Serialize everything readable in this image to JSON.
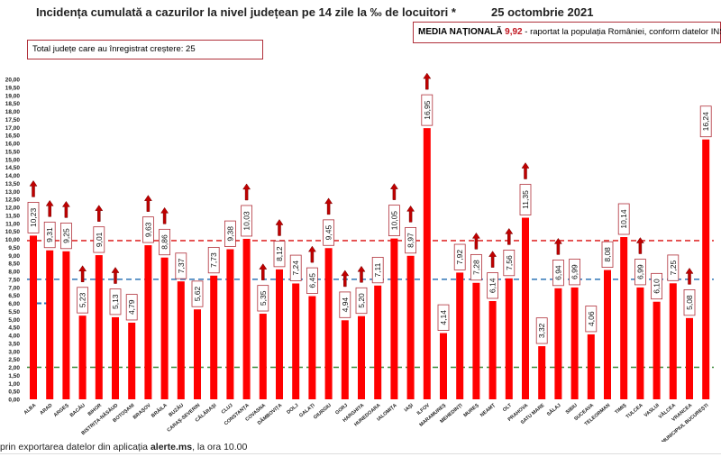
{
  "title": "Incidența cumulată a cazurilor la nivel județean pe 14 zile la ‰ de locuitori *",
  "date": "25 octombrie 2021",
  "total_box": "Total județe care au înregistrat creștere:  25",
  "media_box": {
    "label": "MEDIA NAȚIONALĂ",
    "value": "9,92",
    "text": " -  raportat la populația României, conform datelor INS"
  },
  "footer": {
    "pre": "prin exportarea datelor din aplicația ",
    "bold": "alerte.ms",
    "post": ", la ora 10.00"
  },
  "chart_data": {
    "type": "bar",
    "title": "Incidența cumulată a cazurilor la nivel județean pe 14 zile la ‰ de locuitori *",
    "ylim": [
      0,
      20
    ],
    "ytick_step": 0.5,
    "grid": false,
    "bar_color": "#ff0000",
    "arrow_color": "#c00000",
    "categories": [
      "ALBA",
      "ARAD",
      "ARGEȘ",
      "BACĂU",
      "BIHOR",
      "BISTRIȚA-NĂSĂUD",
      "BOTOȘANI",
      "BRAȘOV",
      "BRĂILA",
      "BUZĂU",
      "CARAȘ-SEVERIN",
      "CĂLĂRAȘI",
      "CLUJ",
      "CONSTANȚA",
      "COVASNA",
      "DÂMBOVIȚA",
      "DOLJ",
      "GALAȚI",
      "GIURGIU",
      "GORJ",
      "HARGHITA",
      "HUNEDOARA",
      "IALOMIȚA",
      "IAȘI",
      "ILFOV",
      "MARAMUREȘ",
      "MEHEDINȚI",
      "MUREȘ",
      "NEAMȚ",
      "OLT",
      "PRAHOVA",
      "SATU MARE",
      "SĂLAJ",
      "SIBIU",
      "SUCEAVA",
      "TELEORMAN",
      "TIMIȘ",
      "TULCEA",
      "VASLUI",
      "VÂLCEA",
      "VRANCEA",
      "MUNICIPIUL BUCUREȘTI"
    ],
    "values": [
      10.23,
      9.31,
      9.25,
      5.23,
      9.01,
      5.13,
      4.79,
      9.63,
      8.86,
      7.37,
      5.62,
      7.73,
      9.38,
      10.03,
      5.35,
      8.12,
      7.24,
      6.45,
      9.45,
      4.94,
      5.2,
      7.11,
      10.05,
      8.97,
      16.95,
      4.14,
      7.92,
      7.28,
      6.14,
      7.56,
      11.35,
      3.32,
      6.94,
      6.99,
      4.06,
      8.08,
      10.14,
      6.99,
      6.1,
      7.25,
      5.08,
      16.24
    ],
    "labels": [
      "10,23",
      "9,31",
      "9,25",
      "5,23",
      "9,01",
      "5,13",
      "4,79",
      "9,63",
      "8,86",
      "7,37",
      "5,62",
      "7,73",
      "9,38",
      "10,03",
      "5,35",
      "8,12",
      "7,24",
      "6,45",
      "9,45",
      "4,94",
      "5,20",
      "7,11",
      "10,05",
      "8,97",
      "16,95",
      "4,14",
      "7,92",
      "7,28",
      "6,14",
      "7,56",
      "11,35",
      "3,32",
      "6,94",
      "6,99",
      "4,06",
      "8,08",
      "10,14",
      "6,99",
      "6,10",
      "7,25",
      "5,08",
      "16,24"
    ],
    "increase": [
      true,
      true,
      true,
      true,
      true,
      true,
      false,
      true,
      true,
      false,
      false,
      false,
      false,
      true,
      true,
      true,
      false,
      true,
      true,
      true,
      true,
      false,
      true,
      true,
      true,
      false,
      false,
      true,
      true,
      true,
      true,
      false,
      true,
      false,
      false,
      false,
      false,
      true,
      false,
      false,
      true,
      false
    ],
    "reference_lines": [
      {
        "value": 9.92,
        "color": "#e03030",
        "style": "dashed"
      },
      {
        "value": 7.5,
        "color": "#2e75b6",
        "style": "dashed"
      },
      {
        "value": 2.0,
        "color": "#3a8a3a",
        "style": "dashed"
      }
    ]
  }
}
